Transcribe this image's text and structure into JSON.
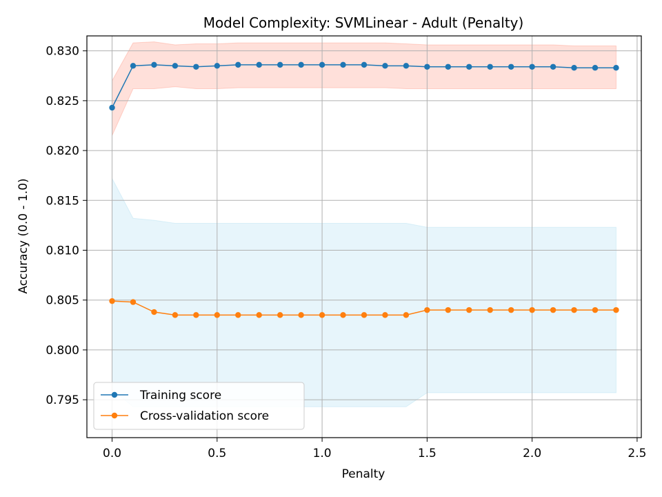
{
  "chart_data": {
    "type": "line",
    "title": "Model Complexity: SVMLinear - Adult (Penalty)",
    "xlabel": "Penalty",
    "ylabel": "Accuracy (0.0 - 1.0)",
    "xlim": [
      -0.12,
      2.52
    ],
    "ylim": [
      0.7912,
      0.8315
    ],
    "xticks": [
      0.0,
      0.5,
      1.0,
      1.5,
      2.0,
      2.5
    ],
    "xtick_labels": [
      "0.0",
      "0.5",
      "1.0",
      "1.5",
      "2.0",
      "2.5"
    ],
    "yticks": [
      0.795,
      0.8,
      0.805,
      0.81,
      0.815,
      0.82,
      0.825,
      0.83
    ],
    "ytick_labels": [
      "0.795",
      "0.800",
      "0.805",
      "0.810",
      "0.815",
      "0.820",
      "0.825",
      "0.830"
    ],
    "grid": true,
    "legend_position": "lower-left",
    "x": [
      0.0,
      0.1,
      0.2,
      0.3,
      0.4,
      0.5,
      0.6,
      0.7,
      0.8,
      0.9,
      1.0,
      1.1,
      1.2,
      1.3,
      1.4,
      1.5,
      1.6,
      1.7,
      1.8,
      1.9,
      2.0,
      2.1,
      2.2,
      2.3,
      2.4
    ],
    "series": [
      {
        "name": "Training score",
        "color": "#1f77b4",
        "band_color": "#ff6347",
        "values": [
          0.8243,
          0.8285,
          0.8286,
          0.8285,
          0.8284,
          0.8285,
          0.8286,
          0.8286,
          0.8286,
          0.8286,
          0.8286,
          0.8286,
          0.8286,
          0.8285,
          0.8285,
          0.8284,
          0.8284,
          0.8284,
          0.8284,
          0.8284,
          0.8284,
          0.8284,
          0.8283,
          0.8283,
          0.8283
        ],
        "band_upper": [
          0.827,
          0.8308,
          0.8309,
          0.8306,
          0.8307,
          0.8307,
          0.8308,
          0.8308,
          0.8308,
          0.8308,
          0.8308,
          0.8308,
          0.8308,
          0.8308,
          0.8307,
          0.8306,
          0.8306,
          0.8306,
          0.8306,
          0.8306,
          0.8306,
          0.8306,
          0.8305,
          0.8305,
          0.8305
        ],
        "band_lower": [
          0.8215,
          0.8262,
          0.8262,
          0.8264,
          0.8262,
          0.8262,
          0.8263,
          0.8263,
          0.8263,
          0.8263,
          0.8263,
          0.8263,
          0.8263,
          0.8263,
          0.8262,
          0.8262,
          0.8262,
          0.8262,
          0.8262,
          0.8262,
          0.8262,
          0.8262,
          0.8262,
          0.8262,
          0.8262
        ]
      },
      {
        "name": "Cross-validation score",
        "color": "#ff7f0e",
        "band_color": "#87ceeb",
        "values": [
          0.8049,
          0.8048,
          0.8038,
          0.8035,
          0.8035,
          0.8035,
          0.8035,
          0.8035,
          0.8035,
          0.8035,
          0.8035,
          0.8035,
          0.8035,
          0.8035,
          0.8035,
          0.804,
          0.804,
          0.804,
          0.804,
          0.804,
          0.804,
          0.804,
          0.804,
          0.804,
          0.804
        ],
        "band_upper": [
          0.8172,
          0.8132,
          0.813,
          0.8127,
          0.8127,
          0.8127,
          0.8127,
          0.8127,
          0.8127,
          0.8127,
          0.8127,
          0.8127,
          0.8127,
          0.8127,
          0.8127,
          0.8123,
          0.8123,
          0.8123,
          0.8123,
          0.8123,
          0.8123,
          0.8123,
          0.8123,
          0.8123,
          0.8123
        ],
        "band_lower": [
          0.796,
          0.7943,
          0.7943,
          0.7943,
          0.7943,
          0.7943,
          0.7943,
          0.7943,
          0.7943,
          0.7943,
          0.7943,
          0.7943,
          0.7943,
          0.7943,
          0.7943,
          0.7957,
          0.7957,
          0.7957,
          0.7957,
          0.7957,
          0.7957,
          0.7957,
          0.7957,
          0.7957,
          0.7957
        ]
      }
    ]
  }
}
